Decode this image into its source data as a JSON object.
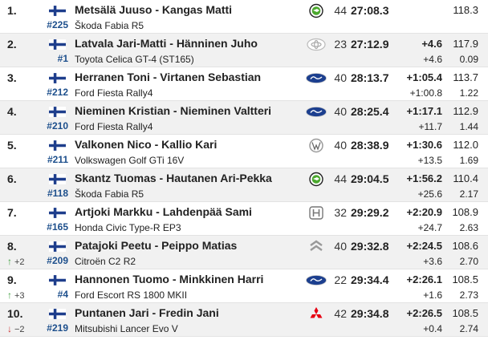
{
  "results": [
    {
      "position": "1.",
      "change_dir": "",
      "change": "",
      "number": "#225",
      "crew": "Metsälä Juuso - Kangas Matti",
      "car": "Škoda Fabia R5",
      "brand": "skoda",
      "group": "44",
      "time": "27:08.3",
      "gap": "",
      "diff": "",
      "speed": "118.3",
      "pace": ""
    },
    {
      "position": "2.",
      "change_dir": "",
      "change": "",
      "number": "#1",
      "crew": "Latvala Jari-Matti - Hänninen Juho",
      "car": "Toyota Celica GT-4 (ST165)",
      "brand": "toyota",
      "group": "23",
      "time": "27:12.9",
      "gap": "+4.6",
      "diff": "+4.6",
      "speed": "117.9",
      "pace": "0.09"
    },
    {
      "position": "3.",
      "change_dir": "",
      "change": "",
      "number": "#212",
      "crew": "Herranen Toni - Virtanen Sebastian",
      "car": "Ford Fiesta Rally4",
      "brand": "ford",
      "group": "40",
      "time": "28:13.7",
      "gap": "+1:05.4",
      "diff": "+1:00.8",
      "speed": "113.7",
      "pace": "1.22"
    },
    {
      "position": "4.",
      "change_dir": "",
      "change": "",
      "number": "#210",
      "crew": "Nieminen Kristian - Nieminen Valtteri",
      "car": "Ford Fiesta Rally4",
      "brand": "ford",
      "group": "40",
      "time": "28:25.4",
      "gap": "+1:17.1",
      "diff": "+11.7",
      "speed": "112.9",
      "pace": "1.44"
    },
    {
      "position": "5.",
      "change_dir": "",
      "change": "",
      "number": "#211",
      "crew": "Valkonen Nico - Kallio Kari",
      "car": "Volkswagen Golf GTi 16V",
      "brand": "vw",
      "group": "40",
      "time": "28:38.9",
      "gap": "+1:30.6",
      "diff": "+13.5",
      "speed": "112.0",
      "pace": "1.69"
    },
    {
      "position": "6.",
      "change_dir": "",
      "change": "",
      "number": "#118",
      "crew": "Skantz Tuomas - Hautanen Ari-Pekka",
      "car": "Škoda Fabia R5",
      "brand": "skoda",
      "group": "44",
      "time": "29:04.5",
      "gap": "+1:56.2",
      "diff": "+25.6",
      "speed": "110.4",
      "pace": "2.17"
    },
    {
      "position": "7.",
      "change_dir": "",
      "change": "",
      "number": "#165",
      "crew": "Artjoki Markku - Lahdenpää Sami",
      "car": "Honda Civic Type-R EP3",
      "brand": "honda",
      "group": "32",
      "time": "29:29.2",
      "gap": "+2:20.9",
      "diff": "+24.7",
      "speed": "108.9",
      "pace": "2.63"
    },
    {
      "position": "8.",
      "change_dir": "up",
      "change": "+2",
      "number": "#209",
      "crew": "Patajoki Peetu - Peippo Matias",
      "car": "Citroën C2 R2",
      "brand": "citroen",
      "group": "40",
      "time": "29:32.8",
      "gap": "+2:24.5",
      "diff": "+3.6",
      "speed": "108.6",
      "pace": "2.70"
    },
    {
      "position": "9.",
      "change_dir": "up",
      "change": "+3",
      "number": "#4",
      "crew": "Hannonen Tuomo - Minkkinen Harri",
      "car": "Ford Escort RS 1800 MKII",
      "brand": "ford",
      "group": "22",
      "time": "29:34.4",
      "gap": "+2:26.1",
      "diff": "+1.6",
      "speed": "108.5",
      "pace": "2.73"
    },
    {
      "position": "10.",
      "change_dir": "down",
      "change": "−2",
      "number": "#219",
      "crew": "Puntanen Jari - Fredin Jani",
      "car": "Mitsubishi Lancer Evo V",
      "brand": "mitsubishi",
      "group": "42",
      "time": "29:34.8",
      "gap": "+2:26.5",
      "diff": "+0.4",
      "speed": "108.5",
      "pace": "2.74"
    }
  ],
  "flag_icon": "finland-flag-icon",
  "colors": {
    "number": "#1d4f8c",
    "row_alt": "#f1f1f1",
    "up": "#3fa03f",
    "down": "#cc3333",
    "ford": "#1c3f8f",
    "skoda": "#4ba82e",
    "mitsubishi": "#e60012"
  }
}
